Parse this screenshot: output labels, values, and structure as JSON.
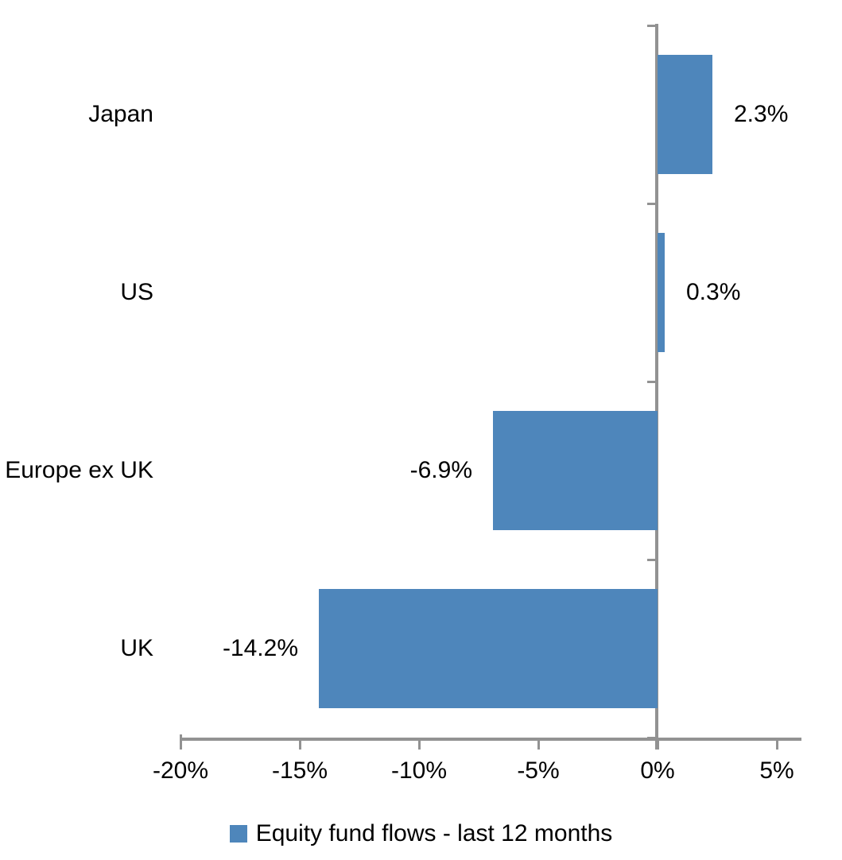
{
  "chart_data": {
    "type": "bar",
    "orientation": "horizontal",
    "title": "",
    "categories": [
      "Japan",
      "US",
      "Europe ex UK",
      "UK"
    ],
    "values": [
      2.3,
      0.3,
      -6.9,
      -14.2
    ],
    "data_labels": [
      "2.3%",
      "0.3%",
      "-6.9%",
      "-14.2%"
    ],
    "series": [
      {
        "name": "Equity fund flows - last 12 months",
        "values": [
          2.3,
          0.3,
          -6.9,
          -14.2
        ]
      }
    ],
    "series_name": "Equity fund flows - last 12 months",
    "x_ticks": [
      -20,
      -15,
      -10,
      -5,
      0,
      5
    ],
    "x_tick_labels": [
      "-20%",
      "-15%",
      "-10%",
      "-5%",
      "0%",
      "5%"
    ],
    "xlim": [
      -20,
      6.03
    ],
    "grid": "off",
    "legend_position": "bottom-center",
    "bar_color": "#4E86BB",
    "axis_color": "#929292",
    "text_color": "#000000",
    "background_color": "#ffffff"
  },
  "legend": {
    "label": "Equity fund flows - last 12 months",
    "swatch_color": "#4E86BB"
  }
}
